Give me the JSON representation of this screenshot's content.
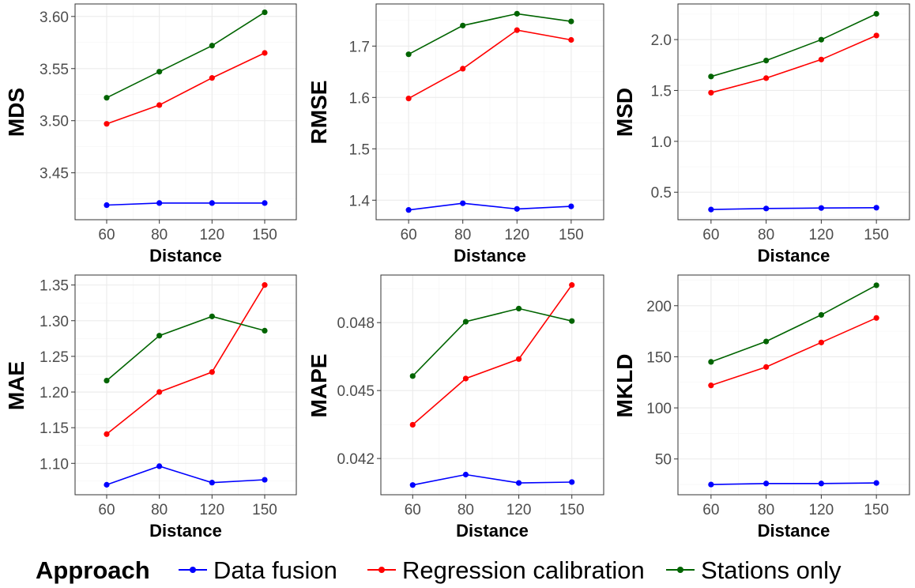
{
  "legend": {
    "title": "Approach",
    "items": [
      {
        "name": "Data fusion",
        "color": "#0000ff"
      },
      {
        "name": "Regression calibration",
        "color": "#ff0000"
      },
      {
        "name": "Stations only",
        "color": "#006400"
      }
    ]
  },
  "chart_data": [
    {
      "type": "line",
      "title": "",
      "xlabel": "Distance",
      "ylabel": "MDS",
      "categories": [
        "60",
        "80",
        "120",
        "150"
      ],
      "ylim": [
        3.405,
        3.612
      ],
      "yticks": [
        3.45,
        3.5,
        3.55,
        3.6
      ],
      "yticklabels": [
        "3.45",
        "3.50",
        "3.55",
        "3.60"
      ],
      "series": [
        {
          "name": "Data fusion",
          "values": [
            3.419,
            3.421,
            3.421,
            3.421
          ]
        },
        {
          "name": "Regression calibration",
          "values": [
            3.497,
            3.515,
            3.541,
            3.565
          ]
        },
        {
          "name": "Stations only",
          "values": [
            3.522,
            3.547,
            3.572,
            3.604
          ]
        }
      ]
    },
    {
      "type": "line",
      "title": "",
      "xlabel": "Distance",
      "ylabel": "RMSE",
      "categories": [
        "60",
        "80",
        "120",
        "150"
      ],
      "ylim": [
        1.362,
        1.782
      ],
      "yticks": [
        1.4,
        1.5,
        1.6,
        1.7
      ],
      "yticklabels": [
        "1.4",
        "1.5",
        "1.6",
        "1.7"
      ],
      "series": [
        {
          "name": "Data fusion",
          "values": [
            1.381,
            1.394,
            1.383,
            1.388
          ]
        },
        {
          "name": "Regression calibration",
          "values": [
            1.598,
            1.656,
            1.731,
            1.712
          ]
        },
        {
          "name": "Stations only",
          "values": [
            1.684,
            1.74,
            1.763,
            1.748
          ]
        }
      ]
    },
    {
      "type": "line",
      "title": "",
      "xlabel": "Distance",
      "ylabel": "MSD",
      "categories": [
        "60",
        "80",
        "120",
        "150"
      ],
      "ylim": [
        0.23,
        2.35
      ],
      "yticks": [
        0.5,
        1.0,
        1.5,
        2.0
      ],
      "yticklabels": [
        "0.5",
        "1.0",
        "1.5",
        "2.0"
      ],
      "series": [
        {
          "name": "Data fusion",
          "values": [
            0.33,
            0.34,
            0.345,
            0.348
          ]
        },
        {
          "name": "Regression calibration",
          "values": [
            1.478,
            1.621,
            1.804,
            2.04
          ]
        },
        {
          "name": "Stations only",
          "values": [
            1.637,
            1.794,
            1.999,
            2.253
          ]
        }
      ]
    },
    {
      "type": "line",
      "title": "",
      "xlabel": "Distance",
      "ylabel": "MAE",
      "categories": [
        "60",
        "80",
        "120",
        "150"
      ],
      "ylim": [
        1.056,
        1.364
      ],
      "yticks": [
        1.1,
        1.15,
        1.2,
        1.25,
        1.3,
        1.35
      ],
      "yticklabels": [
        "1.10",
        "1.15",
        "1.20",
        "1.25",
        "1.30",
        "1.35"
      ],
      "series": [
        {
          "name": "Data fusion",
          "values": [
            1.07,
            1.096,
            1.073,
            1.077
          ]
        },
        {
          "name": "Regression calibration",
          "values": [
            1.141,
            1.2,
            1.228,
            1.35
          ]
        },
        {
          "name": "Stations only",
          "values": [
            1.216,
            1.279,
            1.306,
            1.286
          ]
        }
      ]
    },
    {
      "type": "line",
      "title": "",
      "xlabel": "Distance",
      "ylabel": "MAPE",
      "categories": [
        "60",
        "80",
        "120",
        "150"
      ],
      "ylim": [
        0.0404,
        0.0501
      ],
      "yticks": [
        0.042,
        0.045,
        0.048
      ],
      "yticklabels": [
        "0.042",
        "0.045",
        "0.048"
      ],
      "series": [
        {
          "name": "Data fusion",
          "values": [
            0.04083,
            0.04129,
            0.04092,
            0.04096
          ]
        },
        {
          "name": "Regression calibration",
          "values": [
            0.04349,
            0.04553,
            0.04639,
            0.04966
          ]
        },
        {
          "name": "Stations only",
          "values": [
            0.04564,
            0.04804,
            0.04862,
            0.04807
          ]
        }
      ]
    },
    {
      "type": "line",
      "title": "",
      "xlabel": "Distance",
      "ylabel": "MKLD",
      "categories": [
        "60",
        "80",
        "120",
        "150"
      ],
      "ylim": [
        15,
        230
      ],
      "yticks": [
        50,
        100,
        150,
        200
      ],
      "yticklabels": [
        "50",
        "100",
        "150",
        "200"
      ],
      "series": [
        {
          "name": "Data fusion",
          "values": [
            25,
            26,
            26,
            26.5
          ]
        },
        {
          "name": "Regression calibration",
          "values": [
            122,
            140,
            164,
            188
          ]
        },
        {
          "name": "Stations only",
          "values": [
            145,
            165,
            191,
            220
          ]
        }
      ]
    }
  ]
}
